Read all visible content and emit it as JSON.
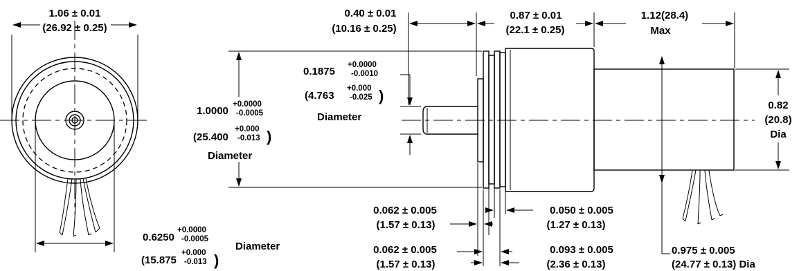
{
  "front_view": {
    "overall_dia": {
      "value": "1.06 ± 0.01",
      "metric": "(26.92 ± 0.25)"
    },
    "bolt_circle": {
      "nominal": "0.6250",
      "tol_plus": "+0.0000",
      "tol_minus": "-0.0005",
      "metric_nominal": "(15.875",
      "metric_tol_plus": "+0.000",
      "metric_tol_minus": "-0.013",
      "close": ")",
      "label": "Diameter"
    }
  },
  "side_view": {
    "flange_width": {
      "value": "0.40 ± 0.01",
      "metric": "(10.16 ± 0.25)"
    },
    "body_length": {
      "value": "0.87 ± 0.01",
      "metric": "(22.1 ± 0.25)"
    },
    "rear_length": {
      "value": "1.12(28.4)",
      "metric": "Max"
    },
    "shaft_dia": {
      "nominal": "0.1875",
      "tol_plus": "+0.0000",
      "tol_minus": "-0.0010",
      "metric_nominal": "(4.763",
      "metric_tol_plus": "+0.000",
      "metric_tol_minus": "-0.025",
      "close": ")",
      "label": "Diameter"
    },
    "pilot_dia": {
      "nominal": "1.0000",
      "tol_plus": "+0.0000",
      "tol_minus": "-0.0005",
      "metric_nominal": "(25.400",
      "metric_tol_plus": "+0.000",
      "metric_tol_minus": "-0.013",
      "close": ")",
      "label": "Diameter"
    },
    "rear_dia": {
      "value": "0.82",
      "metric": "(20.8)",
      "label": "Dia"
    },
    "flange_a": {
      "value": "0.062 ± 0.005",
      "metric": "(1.57 ± 0.13)"
    },
    "flange_b": {
      "value": "0.050 ± 0.005",
      "metric": "(1.27 ± 0.13)"
    },
    "flange_c": {
      "value": "0.062 ± 0.005",
      "metric": "(1.57 ± 0.13)"
    },
    "flange_d": {
      "value": "0.093 ± 0.005",
      "metric": "(2.36 ± 0.13)"
    },
    "body_dia": {
      "value": "0.975 ± 0.005",
      "metric": "(24.77 ± 0.13) Dia"
    }
  }
}
